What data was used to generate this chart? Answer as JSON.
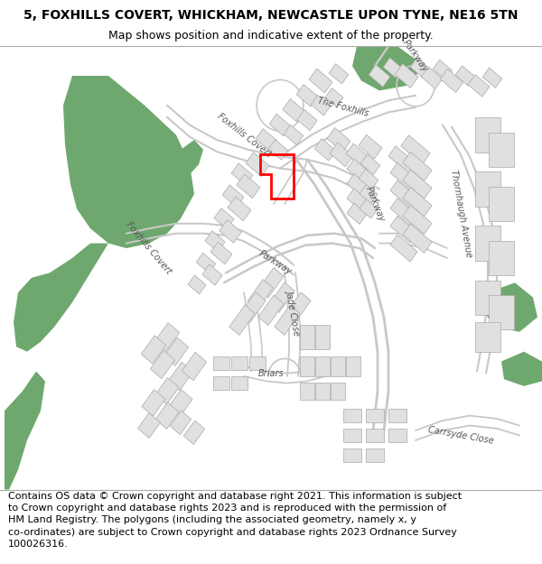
{
  "title_line1": "5, FOXHILLS COVERT, WHICKHAM, NEWCASTLE UPON TYNE, NE16 5TN",
  "title_line2": "Map shows position and indicative extent of the property.",
  "footer_text": "Contains OS data © Crown copyright and database right 2021. This information is subject\nto Crown copyright and database rights 2023 and is reproduced with the permission of\nHM Land Registry. The polygons (including the associated geometry, namely x, y\nco-ordinates) are subject to Crown copyright and database rights 2023 Ordnance Survey\n100026316.",
  "bg_color": "#ffffff",
  "map_bg": "#ffffff",
  "road_outline": "#c8c8c8",
  "building_color": "#e0e0e0",
  "building_outline": "#b0b0b0",
  "green_color": "#6ea86e",
  "red_outline": "#ff0000",
  "title_fontsize": 10,
  "subtitle_fontsize": 9,
  "footer_fontsize": 8,
  "label_fontsize": 7,
  "label_color": "#555555",
  "fig_width": 6.0,
  "fig_height": 6.25
}
